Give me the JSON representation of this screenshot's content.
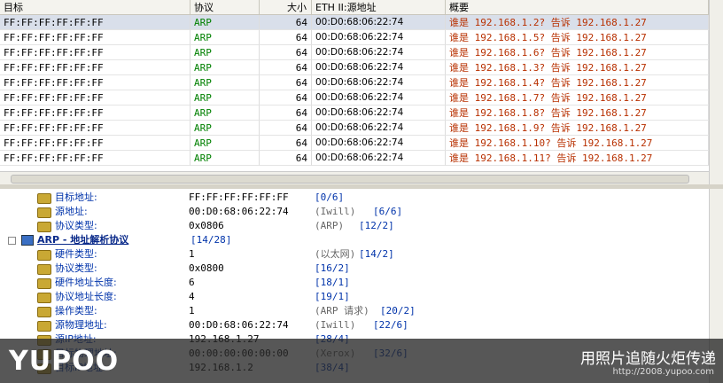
{
  "table": {
    "headers": [
      "目标",
      "协议",
      "大小",
      "ETH II:源地址",
      "概要"
    ],
    "rows": [
      [
        "FF:FF:FF:FF:FF:FF",
        "ARP",
        64,
        "00:D0:68:06:22:74",
        "谁是 192.168.1.2? 告诉 192.168.1.27"
      ],
      [
        "FF:FF:FF:FF:FF:FF",
        "ARP",
        64,
        "00:D0:68:06:22:74",
        "谁是 192.168.1.5? 告诉 192.168.1.27"
      ],
      [
        "FF:FF:FF:FF:FF:FF",
        "ARP",
        64,
        "00:D0:68:06:22:74",
        "谁是 192.168.1.6? 告诉 192.168.1.27"
      ],
      [
        "FF:FF:FF:FF:FF:FF",
        "ARP",
        64,
        "00:D0:68:06:22:74",
        "谁是 192.168.1.3? 告诉 192.168.1.27"
      ],
      [
        "FF:FF:FF:FF:FF:FF",
        "ARP",
        64,
        "00:D0:68:06:22:74",
        "谁是 192.168.1.4? 告诉 192.168.1.27"
      ],
      [
        "FF:FF:FF:FF:FF:FF",
        "ARP",
        64,
        "00:D0:68:06:22:74",
        "谁是 192.168.1.7? 告诉 192.168.1.27"
      ],
      [
        "FF:FF:FF:FF:FF:FF",
        "ARP",
        64,
        "00:D0:68:06:22:74",
        "谁是 192.168.1.8? 告诉 192.168.1.27"
      ],
      [
        "FF:FF:FF:FF:FF:FF",
        "ARP",
        64,
        "00:D0:68:06:22:74",
        "谁是 192.168.1.9? 告诉 192.168.1.27"
      ],
      [
        "FF:FF:FF:FF:FF:FF",
        "ARP",
        64,
        "00:D0:68:06:22:74",
        "谁是 192.168.1.10? 告诉 192.168.1.27"
      ],
      [
        "FF:FF:FF:FF:FF:FF",
        "ARP",
        64,
        "00:D0:68:06:22:74",
        "谁是 192.168.1.11? 告诉 192.168.1.27"
      ]
    ]
  },
  "details": [
    {
      "label": "目标地址:",
      "value": "FF:FF:FF:FF:FF:FF",
      "range": "[0/6]"
    },
    {
      "label": "源地址:",
      "value": "00:D0:68:06:22:74",
      "info": "(Iwill)",
      "range": "[6/6]"
    },
    {
      "label": "协议类型:",
      "value": "0x0806",
      "info": "(ARP)",
      "range": "[12/2]"
    },
    {
      "section": "ARP - 地址解析协议",
      "range": "[14/28]"
    },
    {
      "label": "硬件类型:",
      "value": "1",
      "info": "(以太网)",
      "range": "[14/2]"
    },
    {
      "label": "协议类型:",
      "value": "0x0800",
      "range": "[16/2]"
    },
    {
      "label": "硬件地址长度:",
      "value": "6",
      "range": "[18/1]"
    },
    {
      "label": "协议地址长度:",
      "value": "4",
      "range": "[19/1]"
    },
    {
      "label": "操作类型:",
      "value": "1",
      "info": "(ARP 请求)",
      "range": "[20/2]"
    },
    {
      "label": "源物理地址:",
      "value": "00:D0:68:06:22:74",
      "info": "(Iwill)",
      "range": "[22/6]"
    },
    {
      "label": "源IP地址:",
      "value": "192.168.1.27",
      "range": "[28/4]"
    },
    {
      "label": "目标物理地址:",
      "value": "00:00:00:00:00:00",
      "info": "(Xerox)",
      "range": "[32/6]"
    },
    {
      "label": "目标IP地址:",
      "value": "192.168.1.2",
      "range": "[38/4]"
    }
  ],
  "watermark": {
    "logo": "YUPOO",
    "slogan": "用照片追随火炬传递",
    "url": "http://2008.yupoo.com"
  }
}
